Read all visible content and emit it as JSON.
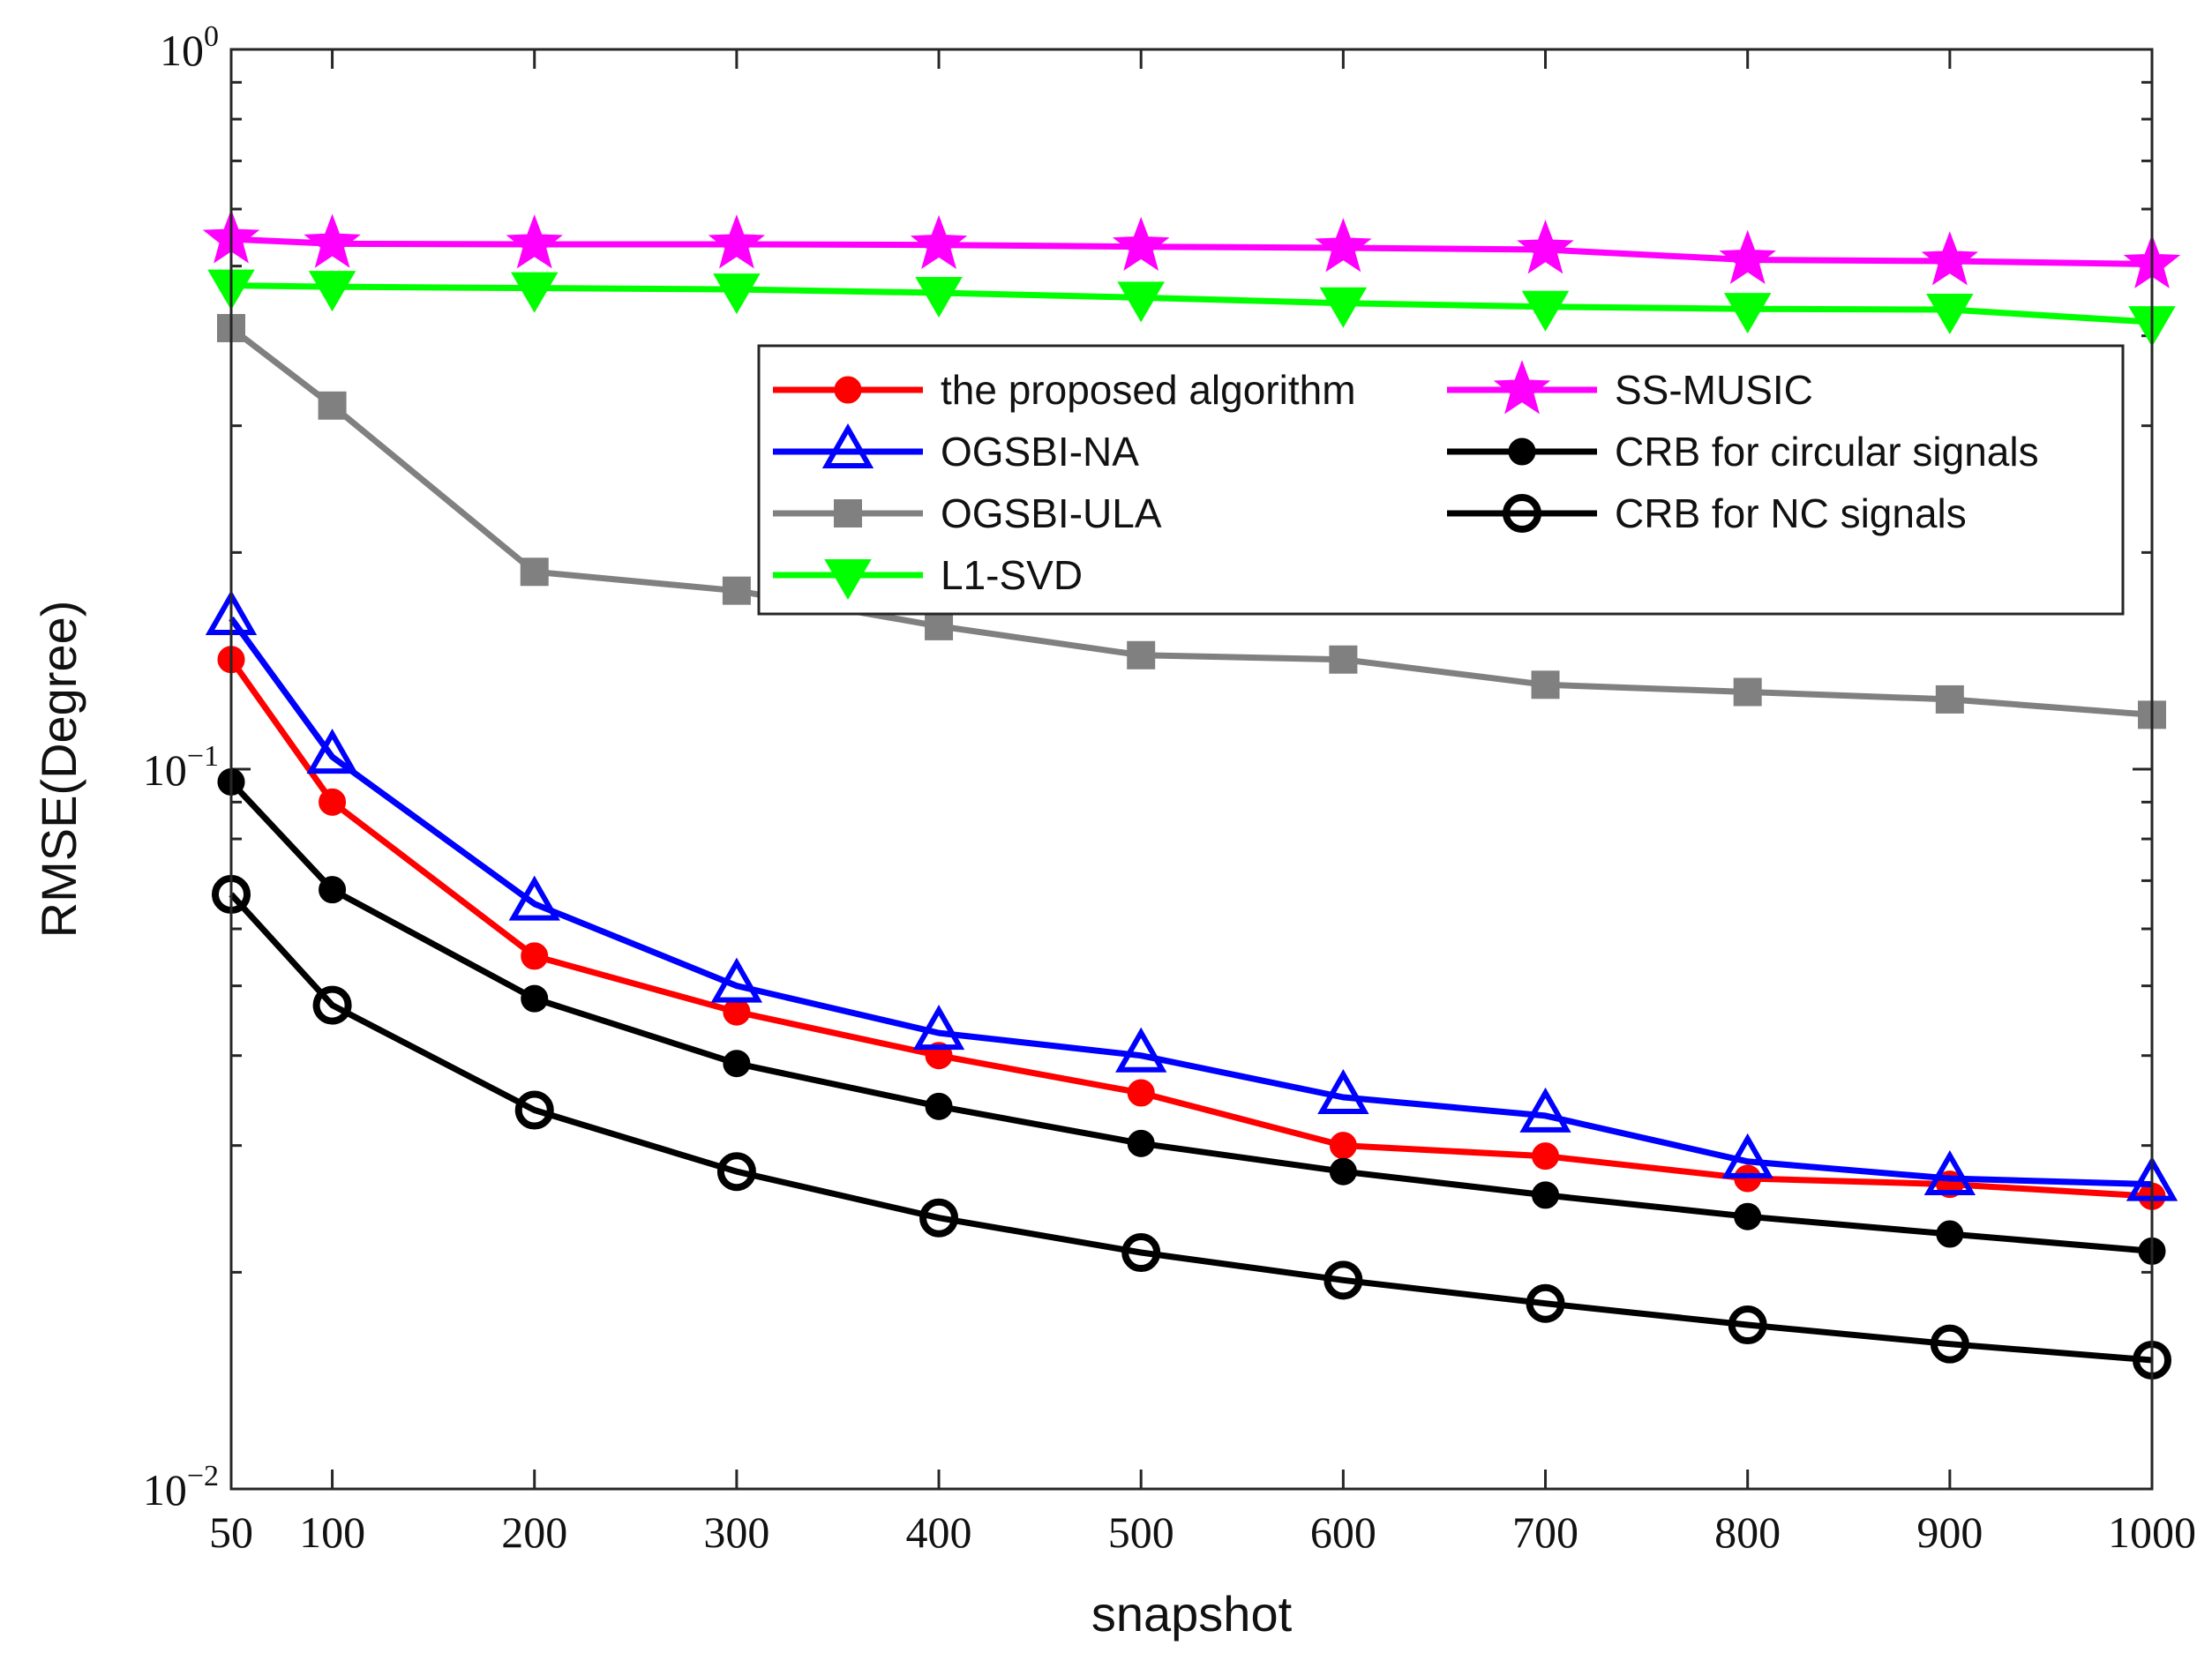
{
  "chart_data": {
    "type": "line",
    "title": "",
    "xlabel": "snapshot",
    "ylabel": "RMSE(Degree)",
    "yscale": "log",
    "xlim": [
      50,
      1000
    ],
    "ylim": [
      0.01,
      1
    ],
    "grid": false,
    "legend_position": "upper-right",
    "x": [
      50,
      100,
      200,
      300,
      400,
      500,
      600,
      700,
      800,
      900,
      1000
    ],
    "x_tick_labels": [
      "50",
      "100",
      "200",
      "300",
      "400",
      "500",
      "600",
      "700",
      "800",
      "900",
      "1000"
    ],
    "y_ticks": [
      {
        "base": "10",
        "exp": "0"
      },
      {
        "base": "10",
        "exp": "−1"
      },
      {
        "base": "10",
        "exp": "−2"
      }
    ],
    "series": [
      {
        "name": "the proposed algorithm",
        "color": "#ff0000",
        "marker": "filled-circle",
        "values": [
          0.142,
          0.09,
          0.055,
          0.046,
          0.04,
          0.0355,
          0.03,
          0.029,
          0.027,
          0.0265,
          0.0255
        ]
      },
      {
        "name": "OGSBI-NA",
        "color": "#0000ff",
        "marker": "open-triangle-up",
        "values": [
          0.162,
          0.104,
          0.065,
          0.05,
          0.043,
          0.04,
          0.035,
          0.033,
          0.0285,
          0.027,
          0.0265
        ]
      },
      {
        "name": "OGSBI-ULA",
        "color": "#808080",
        "marker": "filled-square",
        "values": [
          0.41,
          0.32,
          0.188,
          0.177,
          0.158,
          0.144,
          0.142,
          0.131,
          0.128,
          0.125,
          0.119
        ]
      },
      {
        "name": "L1-SVD",
        "color": "#00ff00",
        "marker": "filled-triangle-down",
        "values": [
          0.47,
          0.468,
          0.466,
          0.464,
          0.459,
          0.452,
          0.444,
          0.439,
          0.436,
          0.435,
          0.418
        ]
      },
      {
        "name": "SS-MUSIC",
        "color": "#ff00ff",
        "marker": "filled-star",
        "values": [
          0.545,
          0.537,
          0.536,
          0.536,
          0.535,
          0.532,
          0.53,
          0.527,
          0.51,
          0.508,
          0.503
        ]
      },
      {
        "name": "CRB for circular signals",
        "color": "#000000",
        "marker": "filled-circle",
        "values": [
          0.096,
          0.068,
          0.048,
          0.039,
          0.034,
          0.0302,
          0.0276,
          0.0256,
          0.0239,
          0.0226,
          0.0214
        ]
      },
      {
        "name": "CRB for NC signals",
        "color": "#000000",
        "marker": "open-circle",
        "values": [
          0.067,
          0.047,
          0.0336,
          0.0276,
          0.0238,
          0.0213,
          0.0195,
          0.0181,
          0.0169,
          0.0159,
          0.0151
        ]
      }
    ]
  }
}
